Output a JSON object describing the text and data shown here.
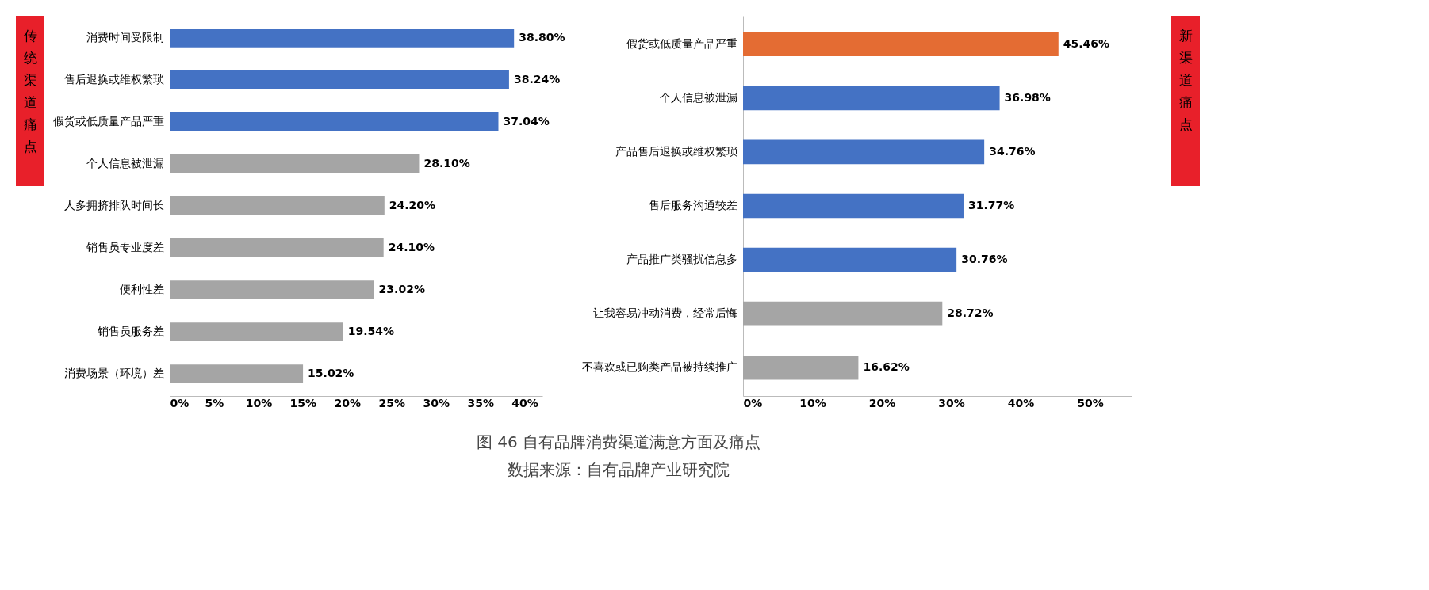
{
  "chart_data": [
    {
      "type": "bar",
      "orientation": "horizontal",
      "categories": [
        "消费时间受限制",
        "售后退换或维权繁琐",
        "假货或低质量产品严重",
        "个人信息被泄漏",
        "人多拥挤排队时间长",
        "销售员专业度差",
        "便利性差",
        "销售员服务差",
        "消费场景（环境）差"
      ],
      "values": [
        38.8,
        38.24,
        37.04,
        28.1,
        24.2,
        24.1,
        23.02,
        19.54,
        15.02
      ],
      "value_labels": [
        "38.80%",
        "38.24%",
        "37.04%",
        "28.10%",
        "24.20%",
        "24.10%",
        "23.02%",
        "19.54%",
        "15.02%"
      ],
      "colors": [
        "#4472c4",
        "#4472c4",
        "#4472c4",
        "#a5a5a5",
        "#a5a5a5",
        "#a5a5a5",
        "#a5a5a5",
        "#a5a5a5",
        "#a5a5a5"
      ],
      "xlim": [
        0,
        42
      ],
      "xticks": [
        {
          "value": 0,
          "label": "0%"
        },
        {
          "value": 5,
          "label": "5%"
        },
        {
          "value": 10,
          "label": "10%"
        },
        {
          "value": 15,
          "label": "15%"
        },
        {
          "value": 20,
          "label": "20%"
        },
        {
          "value": 25,
          "label": "25%"
        },
        {
          "value": 30,
          "label": "30%"
        },
        {
          "value": 35,
          "label": "35%"
        },
        {
          "value": 40,
          "label": "40%"
        }
      ],
      "grid": false,
      "annotations": [
        "传统渠道痛点",
        "图 46 自有品牌消费渠道满意方面及痛点",
        "数据来源：自有品牌产业研究院"
      ]
    },
    {
      "type": "bar",
      "orientation": "horizontal",
      "categories": [
        "假货或低质量产品严重",
        "个人信息被泄漏",
        "产品售后退换或维权繁琐",
        "售后服务沟通较差",
        "产品推广类骚扰信息多",
        "让我容易冲动消费，经常后悔",
        "不喜欢或已购类产品被持续推广"
      ],
      "values": [
        45.46,
        36.98,
        34.76,
        31.77,
        30.76,
        28.72,
        16.62
      ],
      "value_labels": [
        "45.46%",
        "36.98%",
        "34.76%",
        "31.77%",
        "30.76%",
        "28.72%",
        "16.62%"
      ],
      "colors": [
        "#e46c33",
        "#4472c4",
        "#4472c4",
        "#4472c4",
        "#4472c4",
        "#a5a5a5",
        "#a5a5a5"
      ],
      "xlim": [
        0,
        56
      ],
      "xticks": [
        {
          "value": 0,
          "label": "0%"
        },
        {
          "value": 10,
          "label": "10%"
        },
        {
          "value": 20,
          "label": "20%"
        },
        {
          "value": 30,
          "label": "30%"
        },
        {
          "value": 40,
          "label": "40%"
        },
        {
          "value": 50,
          "label": "50%"
        }
      ],
      "grid": false,
      "annotations": [
        "新渠道痛点"
      ]
    }
  ]
}
